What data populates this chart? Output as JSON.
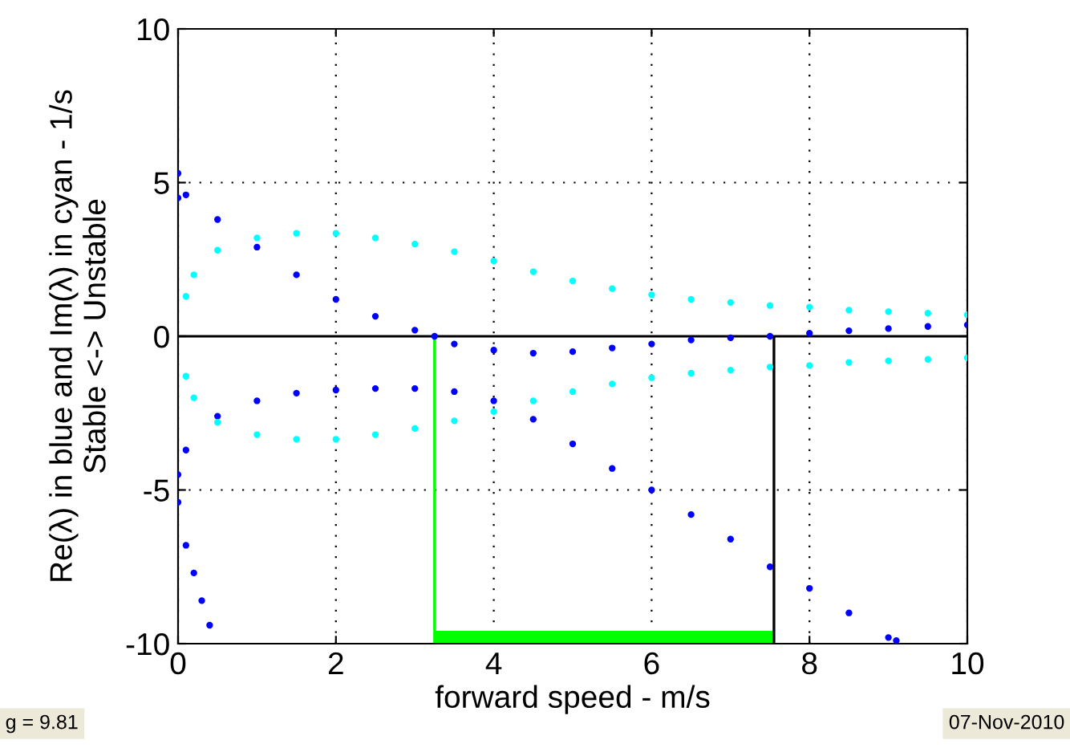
{
  "chart_data": {
    "type": "scatter",
    "xlabel": "forward speed - m/s",
    "ylabel": "Re(λ) in blue and Im(λ) in cyan - 1/s\nStable <-> Unstable",
    "xlim": [
      0,
      10
    ],
    "ylim": [
      -10,
      10
    ],
    "xticks": [
      0,
      2,
      4,
      6,
      8,
      10
    ],
    "yticks": [
      -10,
      -5,
      0,
      5,
      10
    ],
    "grid": true,
    "marker": "circle",
    "series": [
      {
        "color": "#0000ff",
        "x": [
          0,
          0,
          0.1,
          0.5,
          1,
          1.5,
          2,
          2.5,
          3,
          3.25,
          3.5,
          4,
          4.5,
          5,
          5.5,
          6,
          6.5,
          7,
          7.5,
          8,
          8.5,
          9,
          9.5,
          10
        ],
        "values": [
          5.3,
          4.5,
          4.6,
          3.8,
          2.9,
          2.0,
          1.2,
          0.65,
          0.2,
          0,
          -0.25,
          -0.45,
          -0.55,
          -0.5,
          -0.38,
          -0.25,
          -0.12,
          -0.05,
          0,
          0.1,
          0.18,
          0.25,
          0.32,
          0.37
        ]
      },
      {
        "color": "#0000ff",
        "x": [
          0,
          0,
          0.1,
          0.5,
          1,
          1.5,
          2,
          2.5,
          3,
          3.5,
          4,
          4.5,
          5,
          5.5,
          6,
          6.5,
          7,
          7.5,
          8,
          8.5,
          9,
          9.1
        ],
        "values": [
          -4.5,
          -5.4,
          -3.7,
          -2.6,
          -2.1,
          -1.85,
          -1.75,
          -1.7,
          -1.7,
          -1.8,
          -2.1,
          -2.7,
          -3.5,
          -4.3,
          -5.0,
          -5.8,
          -6.6,
          -7.5,
          -8.2,
          -9.0,
          -9.8,
          -9.9
        ]
      },
      {
        "color": "#0000ff",
        "x": [
          0.1,
          0.2,
          0.3,
          0.4
        ],
        "values": [
          -6.8,
          -7.7,
          -8.6,
          -9.4
        ]
      },
      {
        "color": "#00ffff",
        "x": [
          0.1,
          0.2,
          0.5,
          1,
          1.5,
          2,
          2.5,
          3,
          3.5,
          4,
          4.5,
          5,
          5.5,
          6,
          6.5,
          7,
          7.5,
          8,
          8.5,
          9,
          9.5,
          10
        ],
        "values": [
          1.3,
          2.0,
          2.8,
          3.2,
          3.35,
          3.35,
          3.2,
          3.0,
          2.75,
          2.45,
          2.1,
          1.8,
          1.55,
          1.35,
          1.2,
          1.1,
          1.0,
          0.95,
          0.85,
          0.8,
          0.75,
          0.7
        ]
      },
      {
        "color": "#00ffff",
        "x": [
          0.1,
          0.2,
          0.5,
          1,
          1.5,
          2,
          2.5,
          3,
          3.5,
          4,
          4.5,
          5,
          5.5,
          6,
          6.5,
          7,
          7.5,
          8,
          8.5,
          9,
          9.5,
          10
        ],
        "values": [
          -1.3,
          -2.0,
          -2.8,
          -3.2,
          -3.35,
          -3.35,
          -3.2,
          -3.0,
          -2.75,
          -2.45,
          -2.1,
          -1.8,
          -1.55,
          -1.35,
          -1.2,
          -1.1,
          -1.0,
          -0.95,
          -0.85,
          -0.8,
          -0.75,
          -0.7
        ]
      },
      {
        "type": "line",
        "marker": "none",
        "color": "#00ff00",
        "x": [
          3.25,
          3.25
        ],
        "values": [
          0,
          -10
        ]
      },
      {
        "type": "line",
        "marker": "none",
        "color": "#00ff00",
        "x": [
          3.25,
          7.55
        ],
        "values": [
          -9.8,
          -9.8
        ]
      },
      {
        "type": "line",
        "marker": "none",
        "color": "#000000",
        "x": [
          7.55,
          7.55
        ],
        "values": [
          0,
          -10
        ]
      }
    ],
    "ref_lines": [
      {
        "axis": "y",
        "value": 0,
        "color": "#000000"
      }
    ],
    "annotations": [
      "g = 9.81",
      "07-Nov-2010"
    ]
  }
}
